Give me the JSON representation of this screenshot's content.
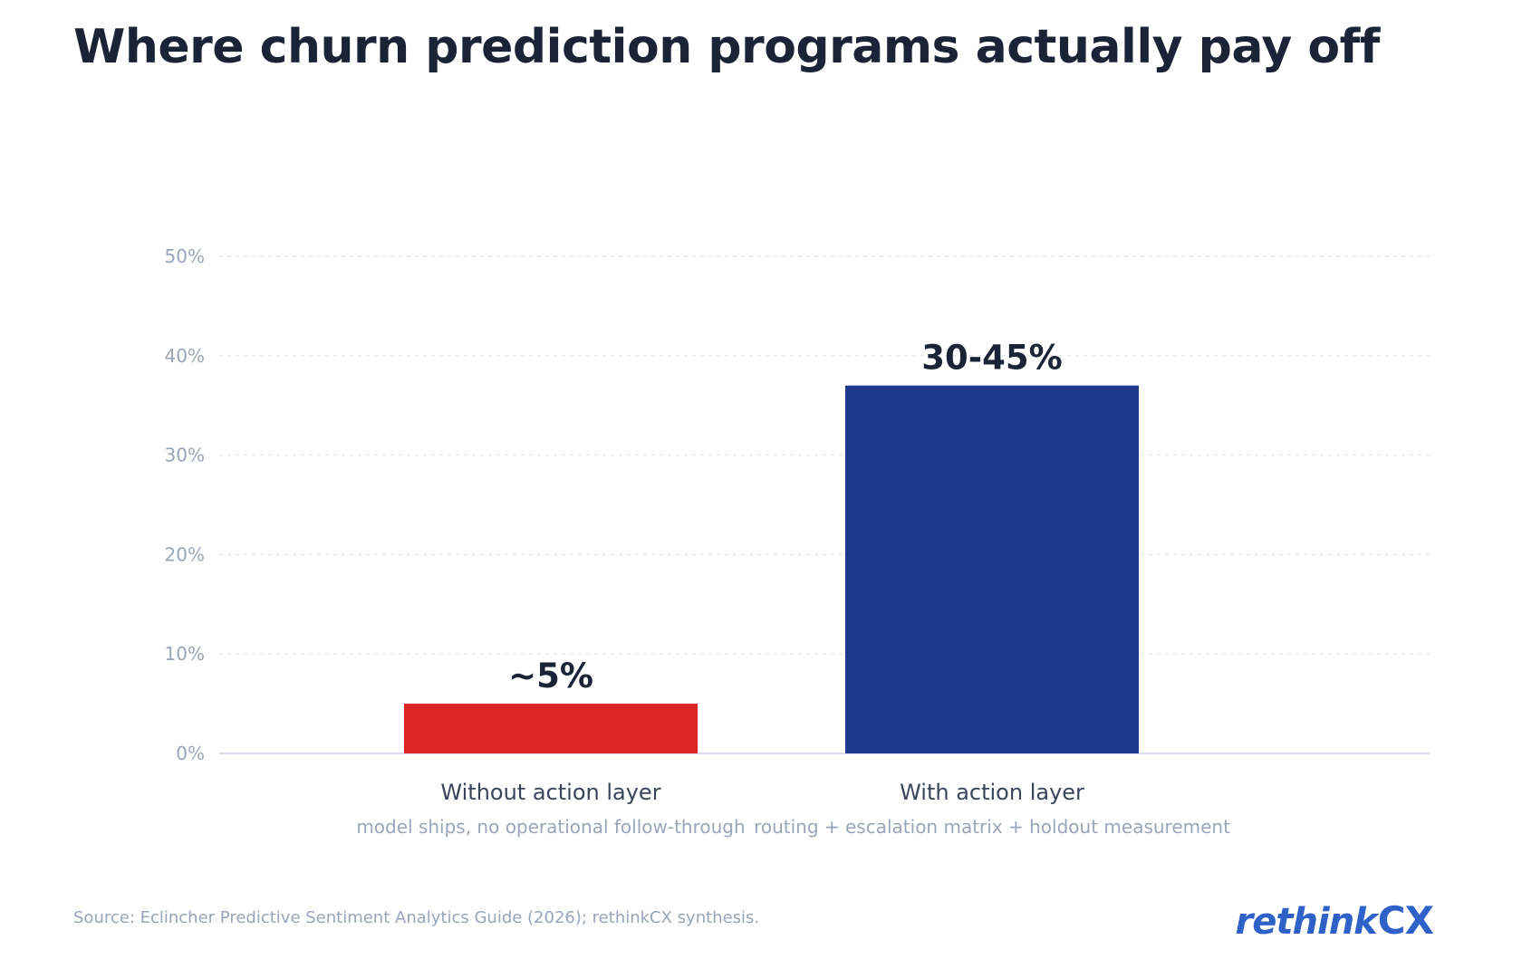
{
  "chart_data": {
    "type": "bar",
    "title": "Where churn prediction programs actually pay off",
    "categories": [
      "Without action layer",
      "With action layer"
    ],
    "subcategories": [
      "model ships, no operational follow-through",
      "routing + escalation matrix + holdout measurement"
    ],
    "values": [
      5,
      37
    ],
    "value_labels": [
      "~5%",
      "30-45%"
    ],
    "colors": [
      "#dc2626",
      "#1e3a8a"
    ],
    "ylim": [
      0,
      50
    ],
    "yticks": [
      0,
      10,
      20,
      30,
      40,
      50
    ],
    "ytick_labels": [
      "0%",
      "10%",
      "20%",
      "30%",
      "40%",
      "50%"
    ],
    "xlabel": "",
    "ylabel": "",
    "grid": true
  },
  "footer": {
    "source": "Source: Eclincher Predictive Sentiment Analytics Guide (2026); rethinkCX synthesis."
  },
  "logo": {
    "text_main": "rethink",
    "text_accent": "CX",
    "color": "#2f62c9"
  }
}
